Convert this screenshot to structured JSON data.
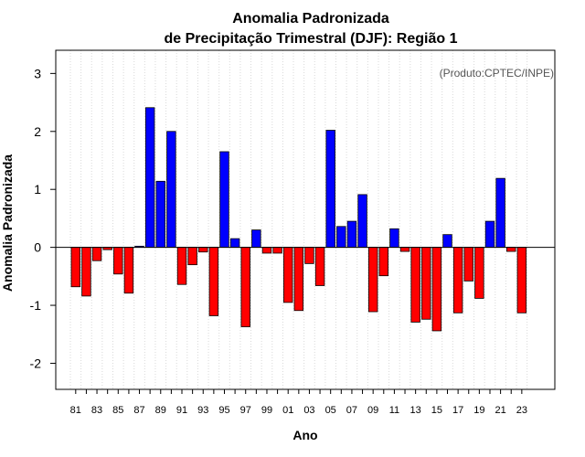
{
  "chart_data": {
    "type": "bar",
    "title": "Anomalia Padronizada",
    "subtitle": "de Precipitação Trimestral (DJF): Região 1",
    "xlabel": "Ano",
    "ylabel": "Anomalia Padronizada",
    "annotation": "(Produto:CPTEC/INPE)",
    "ylim": [
      -2.45,
      3.4
    ],
    "yticks": [
      -2,
      -1,
      0,
      1,
      2,
      3
    ],
    "grid": true,
    "colors": {
      "positive": "#0000ff",
      "negative": "#ff0000",
      "grid": "#d9d9d9"
    },
    "categories": [
      "81",
      "82",
      "83",
      "84",
      "85",
      "86",
      "87",
      "88",
      "89",
      "90",
      "91",
      "92",
      "93",
      "94",
      "95",
      "96",
      "97",
      "98",
      "99",
      "00",
      "01",
      "02",
      "03",
      "04",
      "05",
      "06",
      "07",
      "08",
      "09",
      "10",
      "11",
      "12",
      "13",
      "14",
      "15",
      "16",
      "17",
      "18",
      "19",
      "20",
      "21",
      "22",
      "23"
    ],
    "tick_labels": [
      "81",
      "83",
      "85",
      "87",
      "89",
      "91",
      "93",
      "95",
      "97",
      "99",
      "01",
      "03",
      "05",
      "07",
      "09",
      "11",
      "13",
      "15",
      "17",
      "19",
      "21",
      "23"
    ],
    "values": [
      -0.68,
      -0.84,
      -0.23,
      -0.04,
      -0.46,
      -0.79,
      0.02,
      2.41,
      1.14,
      2.0,
      -0.64,
      -0.3,
      -0.08,
      -1.18,
      1.65,
      0.15,
      -1.37,
      0.3,
      -0.1,
      -0.1,
      -0.95,
      -1.09,
      -0.28,
      -0.66,
      2.02,
      0.36,
      0.45,
      0.91,
      -1.11,
      -0.49,
      0.32,
      -0.07,
      -1.29,
      -1.24,
      -1.44,
      0.22,
      -1.13,
      -0.58,
      -0.88,
      0.45,
      1.19,
      -0.07,
      -1.13
    ]
  }
}
